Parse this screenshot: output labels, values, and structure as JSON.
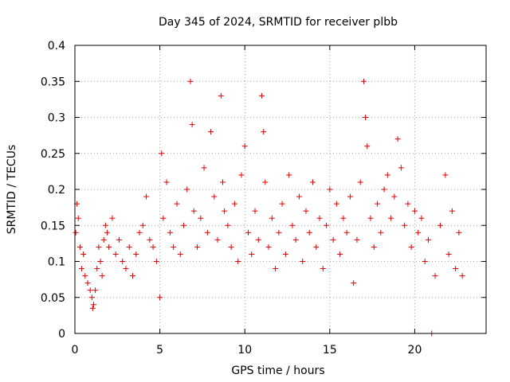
{
  "chart_data": {
    "type": "scatter",
    "title": "Day 345 of 2024, SRMTID for receiver plbb",
    "xlabel": "GPS time / hours",
    "ylabel": "SRMTID / TECUs",
    "xlim": [
      0,
      24.2
    ],
    "ylim": [
      0,
      0.4
    ],
    "xticks": [
      0,
      5,
      10,
      15,
      20
    ],
    "xtick_labels": [
      "0",
      "5",
      "10",
      "15",
      "20"
    ],
    "yticks": [
      0,
      0.05,
      0.1,
      0.15,
      0.2,
      0.25,
      0.3,
      0.35,
      0.4
    ],
    "ytick_labels": [
      "0",
      "0.05",
      "0.1",
      "0.15",
      "0.2",
      "0.25",
      "0.3",
      "0.35",
      "0.4"
    ],
    "grid": true,
    "marker": "plus",
    "marker_color": "#e00000",
    "series": [
      {
        "name": "SRMTID",
        "x": [
          0.05,
          0.12,
          0.2,
          0.3,
          0.4,
          0.5,
          0.6,
          0.75,
          0.9,
          1.0,
          1.05,
          1.1,
          1.2,
          1.3,
          1.4,
          1.5,
          1.6,
          1.7,
          1.8,
          1.9,
          2.0,
          2.2,
          2.4,
          2.6,
          2.8,
          3.0,
          3.2,
          3.4,
          3.6,
          3.8,
          4.0,
          4.2,
          4.4,
          4.6,
          4.8,
          5.0,
          5.1,
          5.2,
          5.4,
          5.6,
          5.8,
          6.0,
          6.2,
          6.4,
          6.6,
          6.8,
          6.9,
          7.0,
          7.2,
          7.4,
          7.6,
          7.8,
          8.0,
          8.2,
          8.4,
          8.6,
          8.7,
          8.8,
          9.0,
          9.2,
          9.4,
          9.6,
          9.8,
          10.0,
          10.2,
          10.4,
          10.6,
          10.8,
          11.0,
          11.1,
          11.2,
          11.4,
          11.6,
          11.8,
          12.0,
          12.2,
          12.4,
          12.6,
          12.8,
          13.0,
          13.2,
          13.4,
          13.6,
          13.8,
          14.0,
          14.2,
          14.4,
          14.6,
          14.8,
          15.0,
          15.2,
          15.4,
          15.6,
          15.8,
          16.0,
          16.2,
          16.4,
          16.6,
          16.8,
          17.0,
          17.1,
          17.2,
          17.4,
          17.6,
          17.8,
          18.0,
          18.2,
          18.4,
          18.6,
          18.8,
          19.0,
          19.2,
          19.4,
          19.6,
          19.8,
          20.0,
          20.2,
          20.4,
          20.6,
          20.8,
          21.0,
          21.2,
          21.5,
          21.8,
          22.0,
          22.2,
          22.4,
          22.6,
          22.8
        ],
        "y": [
          0.14,
          0.18,
          0.16,
          0.12,
          0.09,
          0.11,
          0.08,
          0.07,
          0.06,
          0.05,
          0.035,
          0.04,
          0.06,
          0.09,
          0.12,
          0.1,
          0.08,
          0.13,
          0.15,
          0.14,
          0.12,
          0.16,
          0.11,
          0.13,
          0.1,
          0.09,
          0.12,
          0.08,
          0.11,
          0.14,
          0.15,
          0.19,
          0.13,
          0.12,
          0.1,
          0.05,
          0.25,
          0.16,
          0.21,
          0.14,
          0.12,
          0.18,
          0.11,
          0.15,
          0.2,
          0.35,
          0.29,
          0.17,
          0.12,
          0.16,
          0.23,
          0.14,
          0.28,
          0.19,
          0.13,
          0.33,
          0.21,
          0.17,
          0.15,
          0.12,
          0.18,
          0.1,
          0.22,
          0.26,
          0.14,
          0.11,
          0.17,
          0.13,
          0.33,
          0.28,
          0.21,
          0.12,
          0.16,
          0.09,
          0.14,
          0.18,
          0.11,
          0.22,
          0.15,
          0.13,
          0.19,
          0.1,
          0.17,
          0.14,
          0.21,
          0.12,
          0.16,
          0.09,
          0.15,
          0.2,
          0.13,
          0.18,
          0.11,
          0.16,
          0.14,
          0.19,
          0.07,
          0.13,
          0.21,
          0.35,
          0.3,
          0.26,
          0.16,
          0.12,
          0.18,
          0.14,
          0.2,
          0.22,
          0.16,
          0.19,
          0.27,
          0.23,
          0.15,
          0.18,
          0.12,
          0.17,
          0.14,
          0.16,
          0.1,
          0.13,
          0.0,
          0.08,
          0.15,
          0.22,
          0.11,
          0.17,
          0.09,
          0.14,
          0.08
        ]
      }
    ]
  }
}
